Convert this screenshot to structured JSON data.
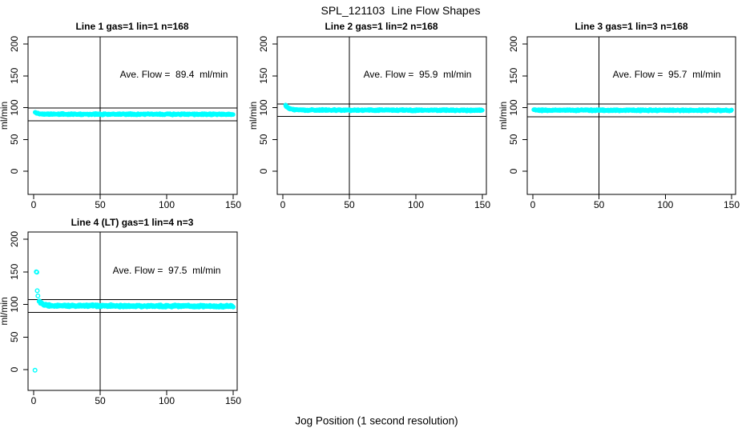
{
  "page": {
    "title": "SPL_121103  Line Flow Shapes",
    "xlabel": "Jog Position (1 second resolution)"
  },
  "style": {
    "point_color": "#00ffff",
    "axis_color": "#000000",
    "background": "#ffffff"
  },
  "chart_data": [
    {
      "type": "scatter",
      "title": "Line 1 gas=1 lin=1 n=168",
      "annotation": "Ave. Flow =  89.4  ml/min",
      "ave_flow_ml_min": 89.4,
      "n_runs": 168,
      "ylabel": "ml/min",
      "xlim": [
        0,
        150
      ],
      "ylim": [
        0,
        200
      ],
      "xticks": [
        0,
        50,
        100,
        150
      ],
      "yticks": [
        0,
        50,
        100,
        150,
        200
      ],
      "ref_vline_x": 50,
      "ref_hlines_y": [
        99.4,
        79.4
      ],
      "series_profile": [
        [
          1,
          92.5
        ],
        [
          2,
          91.5
        ],
        [
          4,
          90.3
        ],
        [
          10,
          89.8
        ],
        [
          150,
          89.4
        ]
      ],
      "jitter": 1.4,
      "n_points": 520,
      "outliers": [],
      "seed": 11
    },
    {
      "type": "scatter",
      "title": "Line 2 gas=1 lin=2 n=168",
      "annotation": "Ave. Flow =  95.9  ml/min",
      "ave_flow_ml_min": 95.9,
      "n_runs": 168,
      "ylabel": "ml/min",
      "xlim": [
        0,
        150
      ],
      "ylim": [
        0,
        200
      ],
      "xticks": [
        0,
        50,
        100,
        150
      ],
      "yticks": [
        0,
        50,
        100,
        150,
        200
      ],
      "ref_vline_x": 50,
      "ref_hlines_y": [
        105.9,
        85.9
      ],
      "series_profile": [
        [
          2,
          104
        ],
        [
          3,
          101
        ],
        [
          5,
          98.5
        ],
        [
          8,
          97
        ],
        [
          15,
          96.2
        ],
        [
          150,
          95.8
        ]
      ],
      "jitter": 1.4,
      "n_points": 520,
      "outliers": [],
      "seed": 22
    },
    {
      "type": "scatter",
      "title": "Line 3 gas=1 lin=3 n=168",
      "annotation": "Ave. Flow =  95.7  ml/min",
      "ave_flow_ml_min": 95.7,
      "n_runs": 168,
      "ylabel": "ml/min",
      "xlim": [
        0,
        150
      ],
      "ylim": [
        0,
        200
      ],
      "xticks": [
        0,
        50,
        100,
        150
      ],
      "yticks": [
        0,
        50,
        100,
        150,
        200
      ],
      "ref_vline_x": 50,
      "ref_hlines_y": [
        105.7,
        85.7
      ],
      "series_profile": [
        [
          0.7,
          96.3
        ],
        [
          3,
          95.9
        ],
        [
          150,
          95.7
        ]
      ],
      "jitter": 1.4,
      "n_points": 520,
      "outliers": [],
      "seed": 33
    },
    {
      "type": "scatter",
      "title": "Line 4 (LT) gas=1 lin=4 n=3",
      "annotation": "Ave. Flow =  97.5  ml/min",
      "ave_flow_ml_min": 97.5,
      "n_runs": 3,
      "ylabel": "ml/min",
      "xlim": [
        0,
        150
      ],
      "ylim": [
        0,
        200
      ],
      "xticks": [
        0,
        50,
        100,
        150
      ],
      "yticks": [
        0,
        50,
        100,
        150,
        200
      ],
      "ref_vline_x": 50,
      "ref_hlines_y": [
        107.5,
        87.5
      ],
      "series_profile": [
        [
          3.8,
          107
        ],
        [
          5,
          103
        ],
        [
          7,
          100
        ],
        [
          12,
          98
        ],
        [
          150,
          97.2
        ]
      ],
      "jitter": 1.8,
      "n_points": 380,
      "outliers": [
        [
          1,
          -1
        ],
        [
          2,
          150
        ],
        [
          2.4,
          149.5
        ],
        [
          2.7,
          121
        ],
        [
          3.2,
          113
        ]
      ],
      "seed": 44
    }
  ]
}
